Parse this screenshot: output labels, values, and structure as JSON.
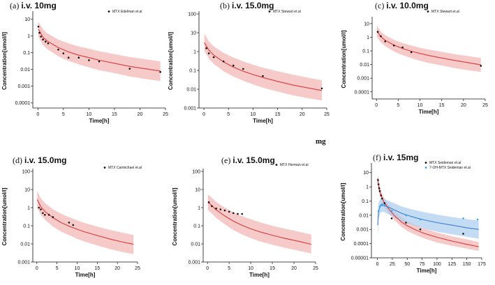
{
  "stray_label": "mg",
  "colors": {
    "model_line": "#d93a3a",
    "model_band": "#f4b8b8",
    "obs": "#111111",
    "metabolite_line": "#3a7fd0",
    "metabolite_band": "#a9cdf0",
    "metabolite_obs": "#3fa1e6"
  },
  "chart_data": [
    {
      "type": "scatter",
      "panel": "(a)",
      "title": "i.v. 10mg",
      "xlabel": "Time[h]",
      "ylabel": "Concentration[umol/l]",
      "xlim": [
        -1,
        25
      ],
      "xticks": [
        0,
        5,
        10,
        15,
        20,
        25
      ],
      "ylim": [
        5e-05,
        20
      ],
      "yticks": [
        10,
        1,
        0.1,
        0.01,
        0.001,
        0.0001
      ],
      "ytick_labels": [
        "10",
        "1",
        "0.1",
        "0.01",
        "0.001",
        "0.0001"
      ],
      "legend": [
        {
          "label": "MTX Edelman et.al",
          "marker": "dot"
        }
      ],
      "series": [
        {
          "name": "MTX Edelman et.al",
          "kind": "points",
          "x": [
            0.1,
            0.3,
            0.6,
            1,
            1.5,
            2,
            4,
            5,
            6,
            8,
            10,
            12,
            18,
            24
          ],
          "y": [
            3.5,
            1.5,
            0.9,
            0.6,
            0.45,
            0.35,
            0.15,
            0.09,
            0.05,
            0.05,
            0.035,
            0.03,
            0.011,
            0.007
          ]
        },
        {
          "name": "Model",
          "kind": "line",
          "x": [
            0.1,
            1,
            2,
            4,
            6,
            8,
            10,
            12,
            15,
            18,
            21,
            24
          ],
          "y": [
            2.5,
            0.8,
            0.45,
            0.2,
            0.11,
            0.07,
            0.05,
            0.035,
            0.023,
            0.015,
            0.011,
            0.008
          ],
          "lower": [
            0.9,
            0.28,
            0.15,
            0.06,
            0.032,
            0.02,
            0.013,
            0.009,
            0.006,
            0.0038,
            0.0027,
            0.002
          ],
          "upper": [
            7,
            2.4,
            1.3,
            0.6,
            0.35,
            0.23,
            0.17,
            0.12,
            0.08,
            0.055,
            0.04,
            0.03
          ]
        }
      ]
    },
    {
      "type": "scatter",
      "panel": "(b)",
      "title": "i.v. 15.0mg",
      "xlabel": "Time[h]",
      "ylabel": "Concentration[umol/l]",
      "xlim": [
        -1,
        25
      ],
      "xticks": [
        0,
        5,
        10,
        15,
        20,
        25
      ],
      "ylim": [
        0.001,
        100
      ],
      "yticks": [
        100,
        10,
        1,
        0.1,
        0.01,
        0.001
      ],
      "ytick_labels": [
        "100",
        "10",
        "1",
        "0.1",
        "0.01",
        "0.001"
      ],
      "legend": [
        {
          "label": "MTX Stewart et.al",
          "marker": "dot"
        }
      ],
      "series": [
        {
          "name": "MTX Stewart et.al",
          "kind": "points",
          "x": [
            0.5,
            1,
            2,
            4,
            6,
            8,
            12,
            24
          ],
          "y": [
            1.5,
            0.8,
            0.5,
            0.3,
            0.18,
            0.12,
            0.05,
            0.011
          ]
        },
        {
          "name": "Model",
          "kind": "line",
          "x": [
            0.1,
            1,
            2,
            4,
            6,
            8,
            10,
            12,
            15,
            18,
            21,
            24
          ],
          "y": [
            3,
            1.2,
            0.65,
            0.28,
            0.15,
            0.09,
            0.06,
            0.042,
            0.026,
            0.017,
            0.012,
            0.0085
          ],
          "lower": [
            1.1,
            0.42,
            0.22,
            0.09,
            0.047,
            0.028,
            0.018,
            0.012,
            0.0075,
            0.0048,
            0.0034,
            0.0025
          ],
          "upper": [
            9,
            3.5,
            1.9,
            0.85,
            0.48,
            0.3,
            0.2,
            0.14,
            0.09,
            0.06,
            0.042,
            0.03
          ]
        }
      ]
    },
    {
      "type": "scatter",
      "panel": "(c)",
      "title": "i.v. 10.0mg",
      "xlabel": "Time[h]",
      "ylabel": "Concentration[umol/l]",
      "xlim": [
        -1,
        25
      ],
      "xticks": [
        0,
        5,
        10,
        15,
        20,
        25
      ],
      "ylim": [
        3e-05,
        20
      ],
      "yticks": [
        10,
        1,
        0.1,
        0.01,
        0.001,
        0.0001
      ],
      "ytick_labels": [
        "10",
        "1",
        "0.1",
        "0.01",
        "0.001",
        "0.0001"
      ],
      "legend": [
        {
          "label": "MTX Stewart et.al",
          "marker": "dot"
        }
      ],
      "series": [
        {
          "name": "MTX Stewart et.al",
          "kind": "points",
          "x": [
            0.3,
            1,
            2,
            4,
            6,
            8,
            24
          ],
          "y": [
            2.5,
            1.2,
            0.5,
            0.25,
            0.18,
            0.08,
            0.008
          ]
        },
        {
          "name": "Model",
          "kind": "line",
          "x": [
            0.1,
            1,
            2,
            4,
            6,
            8,
            10,
            12,
            15,
            18,
            21,
            24
          ],
          "y": [
            2.8,
            1.1,
            0.6,
            0.27,
            0.15,
            0.095,
            0.065,
            0.046,
            0.03,
            0.02,
            0.014,
            0.0095
          ],
          "lower": [
            1.1,
            0.42,
            0.22,
            0.09,
            0.048,
            0.03,
            0.019,
            0.013,
            0.0085,
            0.0055,
            0.0039,
            0.0028
          ],
          "upper": [
            7,
            2.6,
            1.4,
            0.65,
            0.38,
            0.25,
            0.17,
            0.125,
            0.085,
            0.058,
            0.042,
            0.03
          ]
        }
      ]
    },
    {
      "type": "scatter",
      "panel": "(d)",
      "title": "i.v. 15.0mg",
      "xlabel": "Time[h]",
      "ylabel": "Concentration[umol/l]",
      "xlim": [
        -1,
        25
      ],
      "xticks": [
        0,
        5,
        10,
        15,
        20,
        25
      ],
      "ylim": [
        0.001,
        100
      ],
      "yticks": [
        100,
        10,
        1,
        0.1,
        0.01,
        0.001
      ],
      "ytick_labels": [
        "100",
        "10",
        "1",
        "0.1",
        "0.01",
        "0.001"
      ],
      "legend": [
        {
          "label": "MTX Carmichael et.al",
          "marker": "dot"
        }
      ],
      "series": [
        {
          "name": "MTX Carmichael et.al",
          "kind": "points",
          "x": [
            0.5,
            1,
            1.5,
            2,
            3,
            4,
            8,
            9
          ],
          "y": [
            1.0,
            0.8,
            0.5,
            0.4,
            0.4,
            0.3,
            0.15,
            0.11
          ]
        },
        {
          "name": "Model",
          "kind": "line",
          "x": [
            0.1,
            1,
            2,
            4,
            6,
            8,
            10,
            12,
            15,
            18,
            21,
            24
          ],
          "y": [
            2.8,
            1.1,
            0.62,
            0.28,
            0.15,
            0.095,
            0.064,
            0.045,
            0.029,
            0.019,
            0.013,
            0.0095
          ],
          "lower": [
            1.0,
            0.4,
            0.22,
            0.09,
            0.048,
            0.03,
            0.019,
            0.013,
            0.0082,
            0.0053,
            0.0037,
            0.0027
          ],
          "upper": [
            8.5,
            3.3,
            1.8,
            0.82,
            0.46,
            0.3,
            0.2,
            0.14,
            0.09,
            0.06,
            0.043,
            0.031
          ]
        }
      ]
    },
    {
      "type": "scatter",
      "panel": "(e)",
      "title": "i.v. 15.0mg",
      "xlabel": "Time[h]",
      "ylabel": "Concentration[umol/l]",
      "xlim": [
        -1,
        25
      ],
      "xticks": [
        0,
        5,
        10,
        15,
        20,
        25
      ],
      "ylim": [
        0.001,
        100
      ],
      "yticks": [
        100,
        10,
        1,
        0.1,
        0.01,
        0.001
      ],
      "ytick_labels": [
        "100",
        "10",
        "1",
        "0.1",
        "0.01",
        "0.001"
      ],
      "legend": [
        {
          "label": "MTX Herman et.al",
          "marker": "dot"
        }
      ],
      "series": [
        {
          "name": "MTX Herman et.al",
          "kind": "points",
          "x": [
            0.3,
            1,
            2,
            3,
            4,
            5,
            6,
            7,
            8
          ],
          "y": [
            2.0,
            1.2,
            0.9,
            0.8,
            0.7,
            0.6,
            0.5,
            0.45,
            0.45
          ]
        },
        {
          "name": "Model",
          "kind": "line",
          "x": [
            0.1,
            1,
            2,
            4,
            6,
            8,
            10,
            12,
            15,
            18,
            21,
            24
          ],
          "y": [
            2.0,
            1.3,
            0.75,
            0.35,
            0.18,
            0.105,
            0.068,
            0.047,
            0.03,
            0.02,
            0.014,
            0.0095
          ],
          "lower": [
            0.75,
            0.48,
            0.27,
            0.12,
            0.058,
            0.033,
            0.021,
            0.014,
            0.009,
            0.006,
            0.0042,
            0.003
          ],
          "upper": [
            5.5,
            3.5,
            2.1,
            1.0,
            0.55,
            0.34,
            0.23,
            0.16,
            0.1,
            0.068,
            0.048,
            0.033
          ]
        }
      ]
    },
    {
      "type": "scatter",
      "panel": "(f)",
      "title": "i.v. 15mg",
      "xlabel": "Time[h]",
      "ylabel": "Concentration[umol/l]",
      "xlim": [
        -10,
        175
      ],
      "xticks": [
        0,
        25,
        50,
        75,
        100,
        125,
        150,
        175
      ],
      "ylim": [
        1e-05,
        30
      ],
      "yticks": [
        10,
        1,
        0.1,
        0.01,
        0.001,
        0.0001,
        1e-05
      ],
      "ytick_labels": [
        "10",
        "1",
        "0.1",
        "0.01",
        "0.001",
        "0.0001",
        "0.00001"
      ],
      "legend": [
        {
          "label": "MTX Seideman et.al",
          "marker": "dot"
        },
        {
          "label": "7-OH-MTX Seideman et.al",
          "marker": "dot-blue"
        }
      ],
      "series": [
        {
          "name": "MTX Seideman et.al",
          "kind": "points",
          "x": [
            1,
            2,
            3,
            4,
            6,
            8,
            12,
            24,
            48,
            72,
            144
          ],
          "y": [
            3,
            1.5,
            0.8,
            0.5,
            0.25,
            0.15,
            0.07,
            0.006,
            0.003,
            0.001,
            0.0005
          ]
        },
        {
          "name": "7-OH-MTX Seideman et.al",
          "kind": "points",
          "color": "blue",
          "x": [
            2,
            4,
            6,
            8,
            12,
            24,
            48,
            72,
            144,
            168
          ],
          "y": [
            0.02,
            0.04,
            0.05,
            0.06,
            0.05,
            0.02,
            0.01,
            0.005,
            0.006,
            0.005
          ]
        },
        {
          "name": "MTX Model",
          "kind": "line",
          "x": [
            0.5,
            2,
            5,
            10,
            20,
            30,
            40,
            50,
            65,
            80,
            100,
            125,
            150,
            170
          ],
          "y": [
            4,
            1.2,
            0.35,
            0.1,
            0.025,
            0.008,
            0.0035,
            0.0018,
            0.0009,
            0.0005,
            0.00028,
            0.00015,
            9e-05,
            6e-05
          ],
          "lower": [
            2,
            0.6,
            0.17,
            0.048,
            0.012,
            0.0038,
            0.0016,
            0.0008,
            0.0004,
            0.00022,
            0.00012,
            7e-05,
            4.5e-05,
            3e-05
          ],
          "upper": [
            8,
            2.4,
            0.7,
            0.2,
            0.05,
            0.017,
            0.0075,
            0.004,
            0.002,
            0.0011,
            0.0006,
            0.00033,
            0.0002,
            0.00013
          ]
        },
        {
          "name": "7-OH-MTX Model",
          "kind": "line",
          "color": "blue",
          "x": [
            0.5,
            2,
            5,
            10,
            20,
            30,
            40,
            50,
            65,
            80,
            100,
            125,
            150,
            170
          ],
          "y": [
            0.002,
            0.02,
            0.045,
            0.05,
            0.035,
            0.022,
            0.014,
            0.01,
            0.0065,
            0.0045,
            0.003,
            0.002,
            0.0013,
            0.001
          ],
          "lower": [
            0.0003,
            0.005,
            0.015,
            0.018,
            0.011,
            0.0065,
            0.004,
            0.0027,
            0.0017,
            0.0011,
            0.0007,
            0.00045,
            0.0003,
            0.00022
          ],
          "upper": [
            0.01,
            0.08,
            0.15,
            0.14,
            0.1,
            0.065,
            0.043,
            0.032,
            0.022,
            0.016,
            0.011,
            0.0075,
            0.0052,
            0.0042
          ]
        }
      ]
    }
  ]
}
